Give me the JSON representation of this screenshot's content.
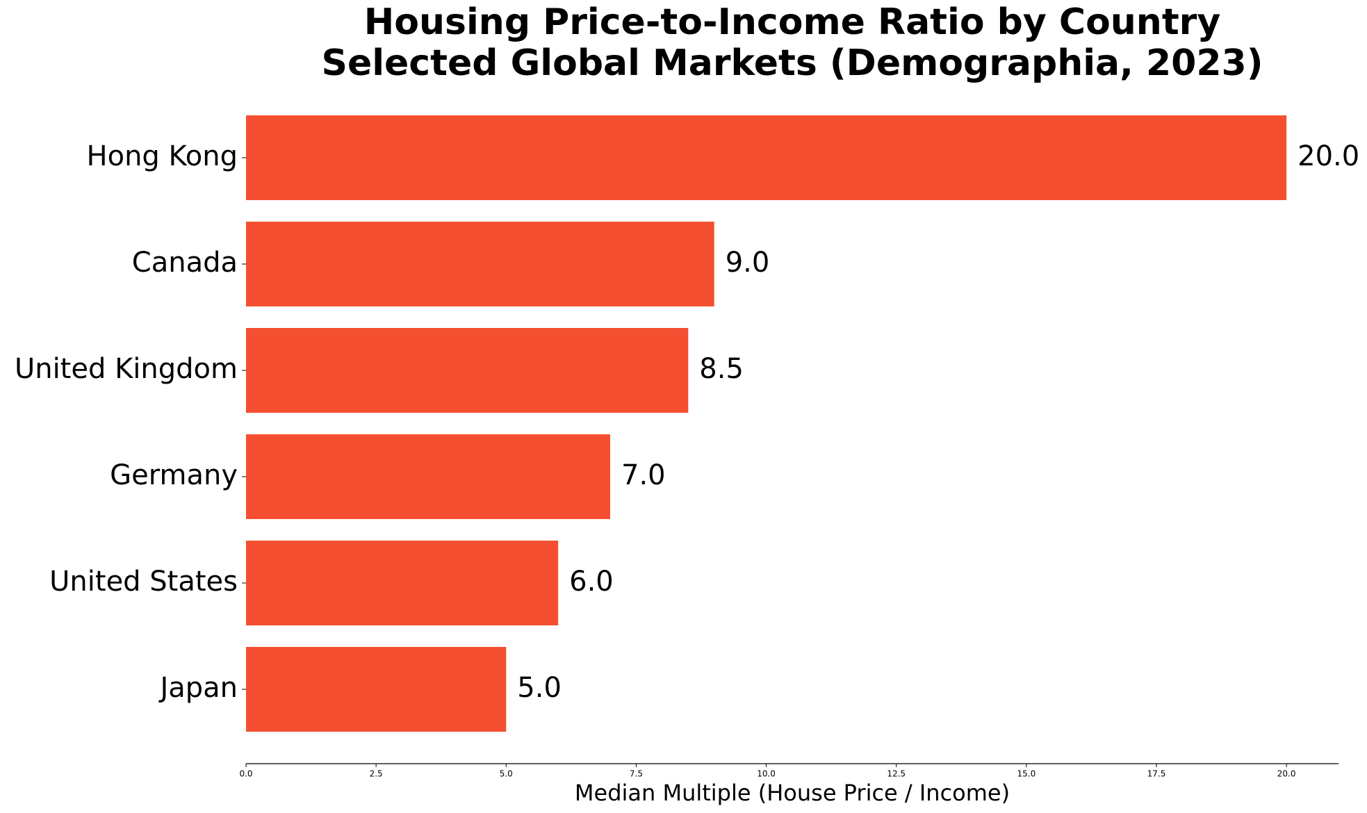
{
  "chart_data": {
    "type": "barh",
    "title": "Housing Price-to-Income Ratio by Country",
    "subtitle": "Selected Global Markets (Demographia, 2023)",
    "x_label": "Median Multiple (House Price / Income)",
    "categories": [
      "Hong Kong",
      "Canada",
      "United Kingdom",
      "Germany",
      "United States",
      "Japan"
    ],
    "values": [
      20.0,
      9.0,
      8.5,
      7.0,
      6.0,
      5.0
    ],
    "value_labels": [
      "20.0",
      "9.0",
      "8.5",
      "7.0",
      "6.0",
      "5.0"
    ],
    "color": "#f44f30",
    "xlim": [
      0,
      21
    ],
    "xticks": [
      {
        "value": 0,
        "label": "0.0"
      },
      2.5,
      {
        "value": 5,
        "label": "5.0"
      },
      7.5,
      {
        "value": 10,
        "label": "10.0"
      },
      12.5,
      {
        "value": 15,
        "label": "15.0"
      },
      17.5,
      {
        "value": 20,
        "label": "20.0"
      }
    ],
    "grid": false
  }
}
